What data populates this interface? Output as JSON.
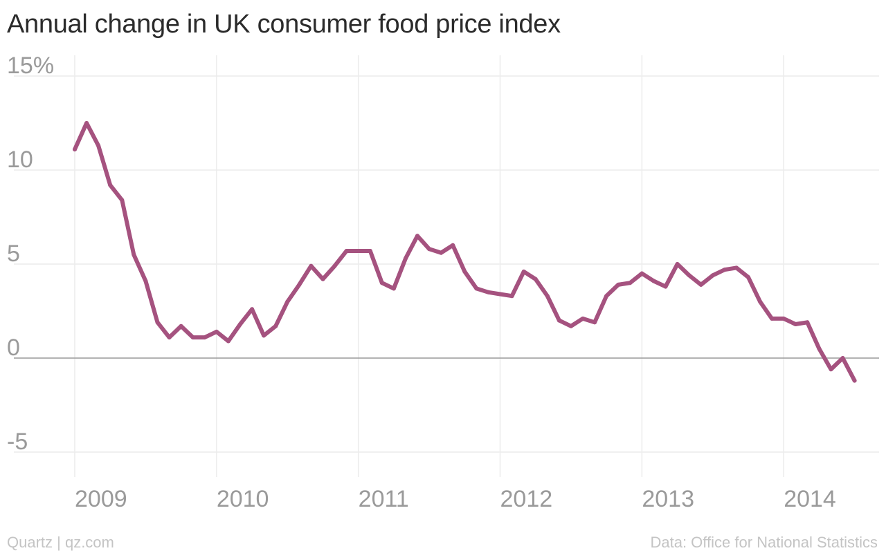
{
  "header": {
    "title": "Annual change in UK consumer food price index"
  },
  "footer": {
    "source_left": "Quartz | qz.com",
    "source_right": "Data: Office for National Statistics"
  },
  "colors": {
    "line": "#a5527f",
    "grid": "#ececec",
    "zero_line": "#9a9a9a",
    "tick_text": "#9a9a9a"
  },
  "chart_data": {
    "type": "line",
    "title": "Annual change in UK consumer food price index",
    "xlabel": "",
    "ylabel": "",
    "y_unit": "%",
    "ylim": [
      -6.5,
      15.5
    ],
    "yticks": [
      -5,
      0,
      5,
      10,
      15
    ],
    "ytick_labels": [
      "-5",
      "0",
      "5",
      "10",
      "15%"
    ],
    "xlim": [
      "2009-01",
      "2014-07"
    ],
    "xticks": [
      "2009",
      "2010",
      "2011",
      "2012",
      "2013",
      "2014"
    ],
    "grid": true,
    "series": [
      {
        "x": [
          "2009-01",
          "2009-02",
          "2009-03",
          "2009-04",
          "2009-05",
          "2009-06",
          "2009-07",
          "2009-08",
          "2009-09",
          "2009-10",
          "2009-11",
          "2009-12",
          "2010-01",
          "2010-02",
          "2010-03",
          "2010-04",
          "2010-05",
          "2010-06",
          "2010-07",
          "2010-08",
          "2010-09",
          "2010-10",
          "2010-11",
          "2010-12",
          "2011-01",
          "2011-02",
          "2011-03",
          "2011-04",
          "2011-05",
          "2011-06",
          "2011-07",
          "2011-08",
          "2011-09",
          "2011-10",
          "2011-11",
          "2011-12",
          "2012-01",
          "2012-02",
          "2012-03",
          "2012-04",
          "2012-05",
          "2012-06",
          "2012-07",
          "2012-08",
          "2012-09",
          "2012-10",
          "2012-11",
          "2012-12",
          "2013-01",
          "2013-02",
          "2013-03",
          "2013-04",
          "2013-05",
          "2013-06",
          "2013-07",
          "2013-08",
          "2013-09",
          "2013-10",
          "2013-11",
          "2013-12",
          "2014-01",
          "2014-02",
          "2014-03",
          "2014-04",
          "2014-05",
          "2014-06",
          "2014-07"
        ],
        "values": [
          11.1,
          12.5,
          11.3,
          9.2,
          8.4,
          5.5,
          4.1,
          1.9,
          1.1,
          1.7,
          1.1,
          1.1,
          1.4,
          0.9,
          1.8,
          2.6,
          1.2,
          1.7,
          3.0,
          3.9,
          4.9,
          4.2,
          4.9,
          5.7,
          5.7,
          5.7,
          4.0,
          3.7,
          5.3,
          6.5,
          5.8,
          5.6,
          6.0,
          4.6,
          3.7,
          3.5,
          3.4,
          3.3,
          4.6,
          4.2,
          3.3,
          2.0,
          1.7,
          2.1,
          1.9,
          3.3,
          3.9,
          4.0,
          4.5,
          4.1,
          3.8,
          5.0,
          4.4,
          3.9,
          4.4,
          4.7,
          4.8,
          4.3,
          3.0,
          2.1,
          2.1,
          1.8,
          1.9,
          0.5,
          -0.6,
          0.0,
          -1.2
        ]
      }
    ]
  }
}
